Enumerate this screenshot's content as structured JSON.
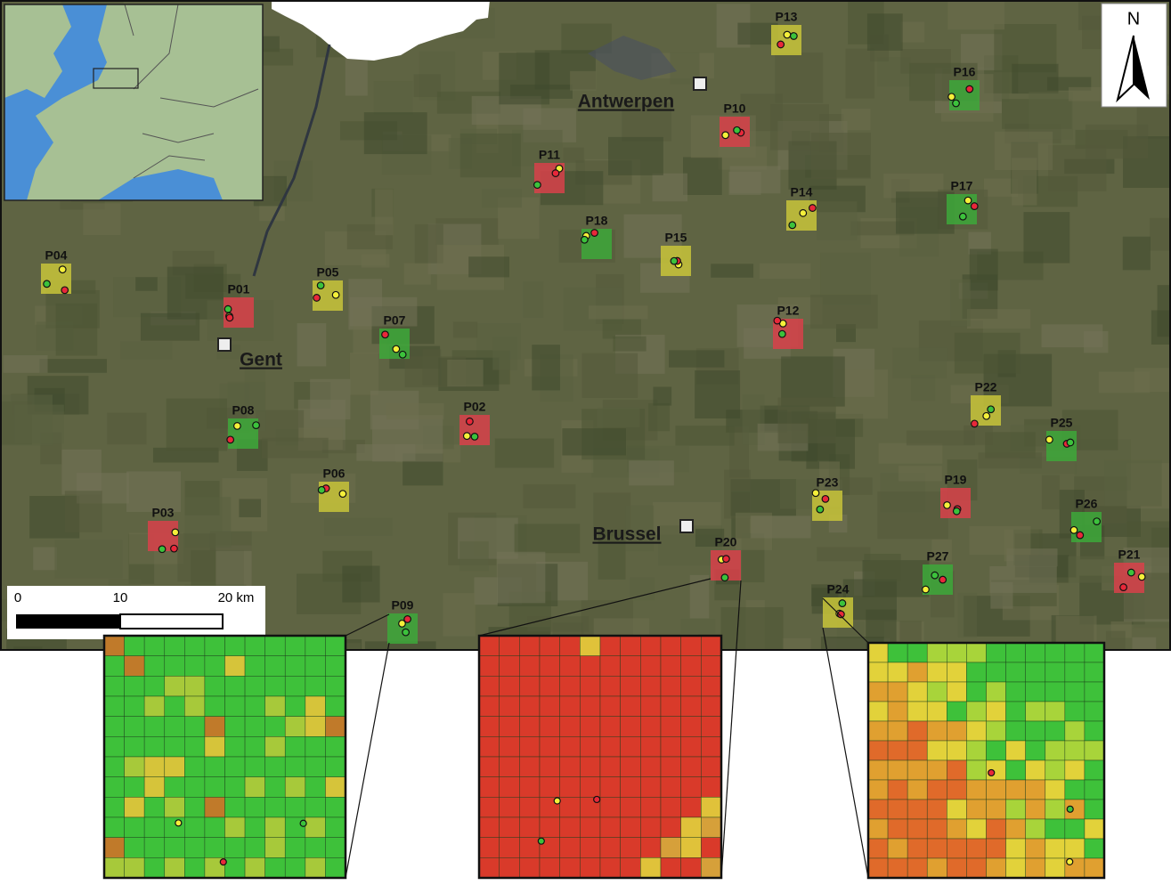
{
  "map": {
    "north": "N",
    "scale_labels": [
      "0",
      "10",
      "20 km"
    ],
    "cities": [
      "Antwerpen",
      "Gent",
      "Brussel"
    ],
    "plots": [
      {
        "label": "P01",
        "color": "#d8414a"
      },
      {
        "label": "P02",
        "color": "#d8414a"
      },
      {
        "label": "P03",
        "color": "#d8414a"
      },
      {
        "label": "P04",
        "color": "#c8c43a"
      },
      {
        "label": "P05",
        "color": "#c8c43a"
      },
      {
        "label": "P06",
        "color": "#c8c43a"
      },
      {
        "label": "P07",
        "color": "#3da83a"
      },
      {
        "label": "P08",
        "color": "#3da83a"
      },
      {
        "label": "P09",
        "color": "#3da83a"
      },
      {
        "label": "P10",
        "color": "#d8414a"
      },
      {
        "label": "P11",
        "color": "#d8414a"
      },
      {
        "label": "P12",
        "color": "#d8414a"
      },
      {
        "label": "P13",
        "color": "#c8c43a"
      },
      {
        "label": "P14",
        "color": "#c8c43a"
      },
      {
        "label": "P15",
        "color": "#c8c43a"
      },
      {
        "label": "P16",
        "color": "#3da83a"
      },
      {
        "label": "P17",
        "color": "#3da83a"
      },
      {
        "label": "P18",
        "color": "#3da83a"
      },
      {
        "label": "P19",
        "color": "#d8414a"
      },
      {
        "label": "P20",
        "color": "#d8414a"
      },
      {
        "label": "P21",
        "color": "#d8414a"
      },
      {
        "label": "P22",
        "color": "#c8c43a"
      },
      {
        "label": "P23",
        "color": "#c8c43a"
      },
      {
        "label": "P24",
        "color": "#c8c43a"
      },
      {
        "label": "P25",
        "color": "#3da83a"
      },
      {
        "label": "P26",
        "color": "#3da83a"
      },
      {
        "label": "P27",
        "color": "#3da83a"
      }
    ]
  }
}
